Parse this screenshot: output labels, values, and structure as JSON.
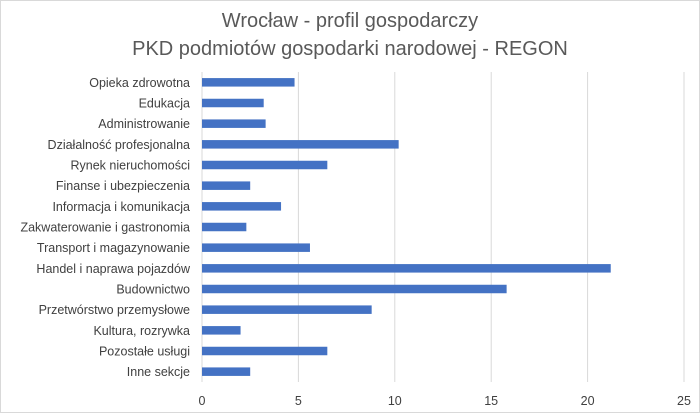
{
  "chart_data": {
    "type": "bar",
    "orientation": "horizontal",
    "title": "Wrocław - profil gospodarczy",
    "subtitle": "PKD podmiotów gospodarki narodowej - REGON",
    "categories": [
      "Opieka zdrowotna",
      "Edukacja",
      "Administrowanie",
      "Działalność profesjonalna",
      "Rynek nieruchomości",
      "Finanse i ubezpieczenia",
      "Informacja i komunikacja",
      "Zakwaterowanie i gastronomia",
      "Transport i magazynowanie",
      "Handel i naprawa pojazdów",
      "Budownictwo",
      "Przetwórstwo przemysłowe",
      "Kultura, rozrywka",
      "Pozostałe usługi",
      "Inne sekcje"
    ],
    "values": [
      4.8,
      3.2,
      3.3,
      10.2,
      6.5,
      2.5,
      4.1,
      2.3,
      5.6,
      21.2,
      15.8,
      8.8,
      2.0,
      6.5,
      2.5
    ],
    "xlim": [
      0,
      25
    ],
    "xticks": [
      0,
      5,
      10,
      15,
      20,
      25
    ],
    "grid": true,
    "bar_color": "#4472c4",
    "grid_color": "#d9d9d9",
    "legend": "none"
  }
}
